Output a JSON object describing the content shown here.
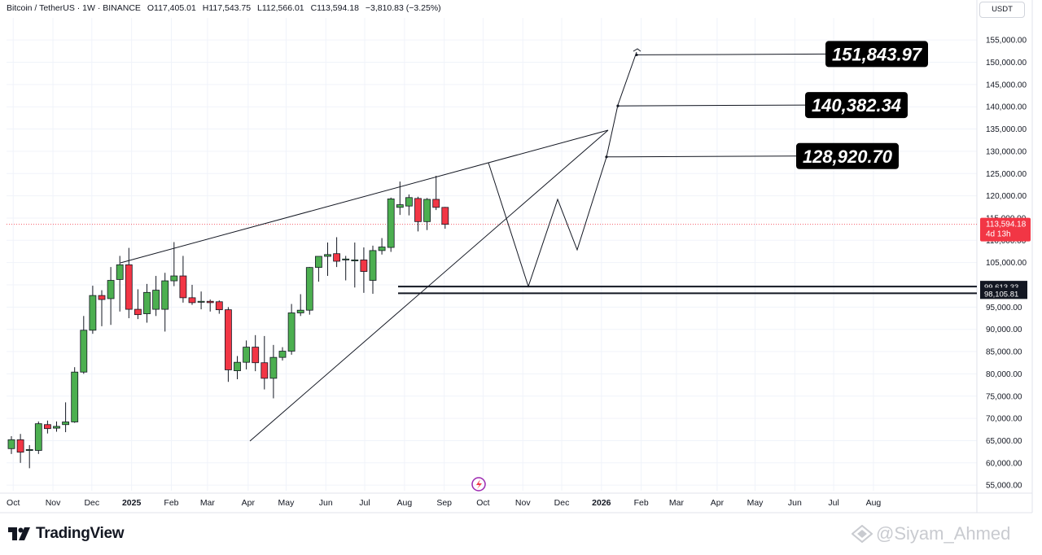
{
  "header": {
    "symbol": "Bitcoin / TetherUS · 1W · BINANCE",
    "open": "O117,405.01",
    "high": "H117,543.75",
    "low": "L112,566.01",
    "close": "C113,594.18",
    "change": "−3,810.83 (−3.25%)"
  },
  "currency_button": "USDT",
  "brand": "TradingView",
  "watermark": "@Siyam_Ahmed",
  "colors": {
    "up": "#4caf50",
    "down": "#f23645",
    "price_tag": "#f23645",
    "grid": "#f0f3fa",
    "line": "#131722"
  },
  "current_price": {
    "label": "113,594.18",
    "countdown": "4d 13h"
  },
  "chart_data": {
    "type": "candlestick",
    "series_name": "BTCUSDT weekly",
    "y_axis_ticks": [
      "155,000.00",
      "150,000.00",
      "145,000.00",
      "140,000.00",
      "135,000.00",
      "130,000.00",
      "125,000.00",
      "120,000.00",
      "115,000.00",
      "110,000.00",
      "105,000.00",
      "100,000.00",
      "95,000.00",
      "90,000.00",
      "85,000.00",
      "80,000.00",
      "75,000.00",
      "70,000.00",
      "65,000.00",
      "60,000.00",
      "55,000.00"
    ],
    "ylim": [
      52500,
      160000
    ],
    "x_axis_labels": [
      {
        "label": "Oct",
        "week": 0.2,
        "bold": false
      },
      {
        "label": "Nov",
        "week": 4.6,
        "bold": false
      },
      {
        "label": "Dec",
        "week": 8.9,
        "bold": false
      },
      {
        "label": "2025",
        "week": 13.3,
        "bold": true
      },
      {
        "label": "Feb",
        "week": 17.7,
        "bold": false
      },
      {
        "label": "Mar",
        "week": 21.7,
        "bold": false
      },
      {
        "label": "Apr",
        "week": 26.2,
        "bold": false
      },
      {
        "label": "May",
        "week": 30.4,
        "bold": false
      },
      {
        "label": "Jun",
        "week": 34.8,
        "bold": false
      },
      {
        "label": "Jul",
        "week": 39.1,
        "bold": false
      },
      {
        "label": "Aug",
        "week": 43.5,
        "bold": false
      },
      {
        "label": "Sep",
        "week": 47.9,
        "bold": false
      },
      {
        "label": "Oct",
        "week": 52.2,
        "bold": false
      },
      {
        "label": "Nov",
        "week": 56.6,
        "bold": false
      },
      {
        "label": "Dec",
        "week": 60.9,
        "bold": false
      },
      {
        "label": "2026",
        "week": 65.3,
        "bold": true
      },
      {
        "label": "Feb",
        "week": 69.7,
        "bold": false
      },
      {
        "label": "Mar",
        "week": 73.6,
        "bold": false
      },
      {
        "label": "Apr",
        "week": 78.1,
        "bold": false
      },
      {
        "label": "May",
        "week": 82.3,
        "bold": false
      },
      {
        "label": "Jun",
        "week": 86.7,
        "bold": false
      },
      {
        "label": "Jul",
        "week": 91.0,
        "bold": false
      },
      {
        "label": "Aug",
        "week": 95.4,
        "bold": false
      }
    ],
    "candles": [
      {
        "o": 63200,
        "h": 66000,
        "l": 62000,
        "c": 65200
      },
      {
        "o": 65200,
        "h": 66500,
        "l": 60000,
        "c": 62400
      },
      {
        "o": 62800,
        "h": 64000,
        "l": 58800,
        "c": 63000
      },
      {
        "o": 62800,
        "h": 69300,
        "l": 62000,
        "c": 68800
      },
      {
        "o": 68600,
        "h": 69500,
        "l": 66600,
        "c": 67700
      },
      {
        "o": 67800,
        "h": 69300,
        "l": 67000,
        "c": 68200
      },
      {
        "o": 68600,
        "h": 73600,
        "l": 66900,
        "c": 69200
      },
      {
        "o": 69200,
        "h": 81500,
        "l": 69000,
        "c": 80400
      },
      {
        "o": 80400,
        "h": 93000,
        "l": 80000,
        "c": 89800
      },
      {
        "o": 89800,
        "h": 99800,
        "l": 89000,
        "c": 97600
      },
      {
        "o": 97600,
        "h": 98800,
        "l": 90700,
        "c": 96700
      },
      {
        "o": 96900,
        "h": 104000,
        "l": 91000,
        "c": 101000
      },
      {
        "o": 101200,
        "h": 106500,
        "l": 94000,
        "c": 104500
      },
      {
        "o": 104500,
        "h": 108300,
        "l": 92500,
        "c": 94500
      },
      {
        "o": 94500,
        "h": 99000,
        "l": 92300,
        "c": 93300
      },
      {
        "o": 93500,
        "h": 100200,
        "l": 91500,
        "c": 98300
      },
      {
        "o": 94500,
        "h": 102000,
        "l": 93000,
        "c": 98800
      },
      {
        "o": 94500,
        "h": 102700,
        "l": 89500,
        "c": 100900
      },
      {
        "o": 100900,
        "h": 109600,
        "l": 99700,
        "c": 102000
      },
      {
        "o": 102000,
        "h": 106500,
        "l": 96000,
        "c": 97100
      },
      {
        "o": 97100,
        "h": 100000,
        "l": 95500,
        "c": 96000
      },
      {
        "o": 96100,
        "h": 98500,
        "l": 94500,
        "c": 96300
      },
      {
        "o": 96300,
        "h": 96700,
        "l": 94000,
        "c": 96000
      },
      {
        "o": 96200,
        "h": 96500,
        "l": 93500,
        "c": 94400
      },
      {
        "o": 94400,
        "h": 95000,
        "l": 78200,
        "c": 80900
      },
      {
        "o": 80700,
        "h": 84000,
        "l": 78800,
        "c": 82600
      },
      {
        "o": 82600,
        "h": 87500,
        "l": 81000,
        "c": 86000
      },
      {
        "o": 86000,
        "h": 88700,
        "l": 80600,
        "c": 82500
      },
      {
        "o": 82500,
        "h": 88500,
        "l": 76500,
        "c": 79000
      },
      {
        "o": 79000,
        "h": 86500,
        "l": 74500,
        "c": 83700
      },
      {
        "o": 83700,
        "h": 86000,
        "l": 83000,
        "c": 85100
      },
      {
        "o": 85100,
        "h": 95700,
        "l": 84300,
        "c": 93700
      },
      {
        "o": 93700,
        "h": 97900,
        "l": 93000,
        "c": 94300
      },
      {
        "o": 94300,
        "h": 104000,
        "l": 93300,
        "c": 103900
      },
      {
        "o": 103900,
        "h": 106000,
        "l": 100700,
        "c": 106400
      },
      {
        "o": 106400,
        "h": 109500,
        "l": 102000,
        "c": 106800
      },
      {
        "o": 107000,
        "h": 110700,
        "l": 104000,
        "c": 105300
      },
      {
        "o": 105700,
        "h": 106500,
        "l": 101000,
        "c": 105800
      },
      {
        "o": 105600,
        "h": 109500,
        "l": 99400,
        "c": 105600
      },
      {
        "o": 105600,
        "h": 108400,
        "l": 98200,
        "c": 103000
      },
      {
        "o": 101000,
        "h": 108800,
        "l": 98000,
        "c": 107700
      },
      {
        "o": 107700,
        "h": 110500,
        "l": 106800,
        "c": 108500
      },
      {
        "o": 108400,
        "h": 119600,
        "l": 107400,
        "c": 119300
      },
      {
        "o": 117400,
        "h": 123200,
        "l": 115700,
        "c": 118000
      },
      {
        "o": 117700,
        "h": 120300,
        "l": 115600,
        "c": 119600
      },
      {
        "o": 119400,
        "h": 119800,
        "l": 112000,
        "c": 114200
      },
      {
        "o": 114200,
        "h": 119500,
        "l": 112300,
        "c": 119200
      },
      {
        "o": 119200,
        "h": 124500,
        "l": 116800,
        "c": 117400
      },
      {
        "o": 117400,
        "h": 117500,
        "l": 112600,
        "c": 113600
      }
    ],
    "pattern": "rising wedge with projected path",
    "targets": [
      "151,843.97",
      "140,382.34",
      "128,920.70"
    ],
    "support_levels": [
      "99,613.33",
      "98,105.81"
    ]
  }
}
